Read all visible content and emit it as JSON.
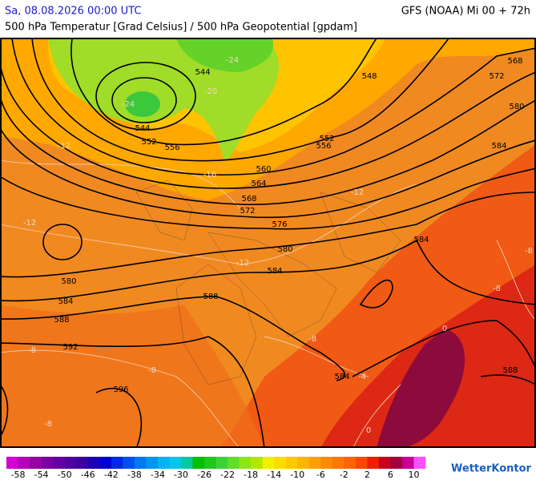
{
  "header": {
    "date": "Sa, 08.08.2026 00:00 UTC",
    "model": "GFS (NOAA) Mi 00 + 72h",
    "subtitle": "500 hPa Temperatur [Grad Celsius] / 500 hPa Geopotential [gpdam]"
  },
  "map": {
    "geopotential_labels": [
      568,
      572,
      548,
      544,
      580,
      544,
      552,
      556,
      552,
      556,
      584,
      560,
      564,
      568,
      572,
      576,
      584,
      580,
      584,
      580,
      584,
      588,
      588,
      592,
      584,
      588,
      596
    ],
    "temperature_labels": [
      -24,
      -24,
      -20,
      -16,
      -12,
      -12,
      -12,
      -12,
      -8,
      -8,
      -8,
      -8,
      -8,
      -8,
      -4,
      0,
      0
    ]
  },
  "colorbar": {
    "lim": [
      -60,
      12
    ],
    "ticks": [
      -58,
      -54,
      -50,
      -46,
      -42,
      -38,
      -34,
      -30,
      -26,
      -22,
      -18,
      -14,
      -10,
      -6,
      -2,
      2,
      6,
      10
    ],
    "colors": [
      "#d200d2",
      "#b400b4",
      "#9600a0",
      "#7800a0",
      "#6400a0",
      "#5000a0",
      "#3c00a0",
      "#1e00b4",
      "#0000d2",
      "#0028e6",
      "#0050f0",
      "#0078f0",
      "#0096f0",
      "#00b4f0",
      "#00c8e6",
      "#00c8a0",
      "#00c000",
      "#1ec81e",
      "#3cd23c",
      "#64dc28",
      "#8ce614",
      "#b4e600",
      "#f0f000",
      "#ffdc00",
      "#ffc800",
      "#ffb400",
      "#ffa000",
      "#ff8c00",
      "#ff7800",
      "#ff6400",
      "#ff4600",
      "#f01e00",
      "#c8001e",
      "#a0003c",
      "#c80096",
      "#ff50ff"
    ]
  },
  "logo": "WetterKontor"
}
